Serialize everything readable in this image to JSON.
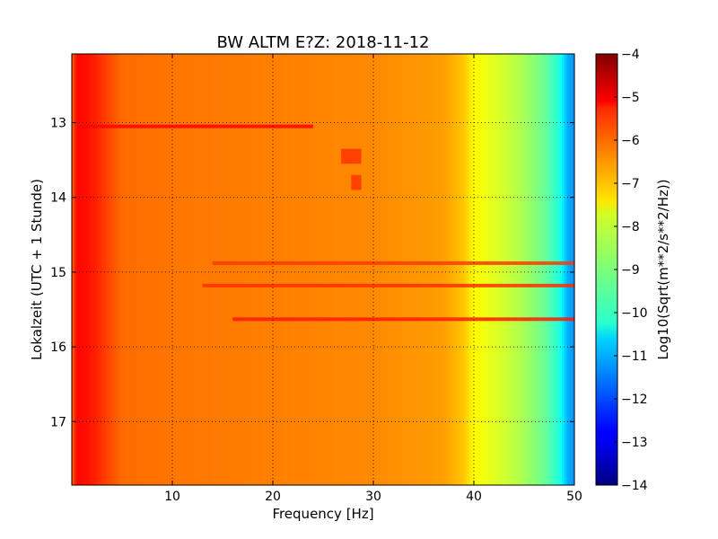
{
  "chart_data": {
    "type": "heatmap",
    "title": "BW ALTM E?Z: 2018-11-12",
    "xlabel": "Frequency [Hz]",
    "ylabel": "Lokalzeit (UTC + 1 Stunde)",
    "xlim": [
      0,
      50
    ],
    "ylim": [
      17.85,
      12.08
    ],
    "x_ticks": [
      10,
      20,
      30,
      40,
      50
    ],
    "x_tick_labels": [
      "10",
      "20",
      "30",
      "40",
      "50"
    ],
    "y_ticks": [
      13,
      14,
      15,
      16,
      17
    ],
    "y_tick_labels": [
      "13",
      "14",
      "15",
      "16",
      "17"
    ],
    "grid": true,
    "colormap": "jet",
    "colorbar": {
      "label": "Log10(Sqrt(m**2/s**2/Hz))",
      "range": [
        -14,
        -4
      ],
      "ticks": [
        -4,
        -5,
        -6,
        -7,
        -8,
        -9,
        -10,
        -11,
        -12,
        -13,
        -14
      ],
      "tick_labels": [
        "−4",
        "−5",
        "−6",
        "−7",
        "−8",
        "−9",
        "−10",
        "−11",
        "−12",
        "−13",
        "−14"
      ]
    },
    "spectrum_profile": {
      "frequency_hz": [
        0,
        0.5,
        1.5,
        2.5,
        3.5,
        5,
        10,
        20,
        30,
        37,
        39,
        40,
        41,
        43,
        45,
        47,
        48.5,
        49.3,
        50
      ],
      "log_amplitude": [
        -6.3,
        -5.3,
        -5.4,
        -5.6,
        -5.9,
        -6.3,
        -6.4,
        -6.5,
        -6.6,
        -6.8,
        -7.2,
        -7.7,
        -7.9,
        -8.2,
        -8.6,
        -9.2,
        -9.9,
        -11,
        -11.3
      ]
    },
    "line_features": [
      {
        "time": 13.05,
        "f_start": 0.5,
        "f_end": 24,
        "log_amplitude": -5.3
      },
      {
        "time": 14.88,
        "f_start": 14,
        "f_end": 50,
        "log_amplitude": -5.8
      },
      {
        "time": 15.18,
        "f_start": 13,
        "f_end": 50,
        "log_amplitude": -5.7
      },
      {
        "time": 15.63,
        "f_start": 16,
        "f_end": 50,
        "log_amplitude": -5.5
      }
    ],
    "patch_features": [
      {
        "f_start": 26.8,
        "f_end": 28.8,
        "t_start": 13.35,
        "t_end": 13.55,
        "log_amplitude": -5.7
      },
      {
        "f_start": 27.8,
        "f_end": 28.8,
        "t_start": 13.7,
        "t_end": 13.9,
        "log_amplitude": -5.7
      }
    ]
  }
}
